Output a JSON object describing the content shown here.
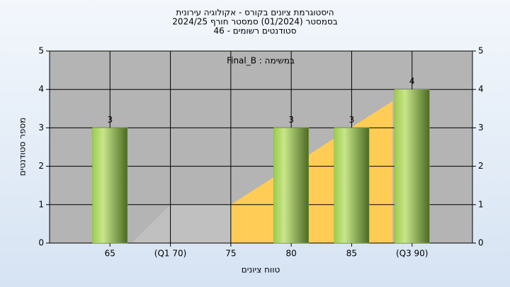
{
  "chart_data": {
    "type": "bar",
    "title": [
      "היסטוגרמת ציונים בקורס - אקולוגיה עירונית",
      "בסמסטר  (01/2024)  סמסטר חורף 2024/25",
      "סטודנטים רשומים - 46"
    ],
    "annotation": "במשימה : Final_B",
    "x_label": "טווח ציונים",
    "y_label": "מספר סטודנטים",
    "x": [
      65,
      70,
      75,
      80,
      85,
      90
    ],
    "values": [
      3,
      0,
      0,
      3,
      3,
      4
    ],
    "color": "#8db543",
    "areas": [
      {
        "color": "#c0c0c0",
        "x": [
          66.8,
          70,
          75,
          75
        ],
        "values": [
          0,
          1,
          1,
          0
        ]
      },
      {
        "color": "#ffcc55",
        "x": [
          75,
          75,
          88.4,
          88.4
        ],
        "values": [
          0,
          1,
          3.7,
          0
        ]
      }
    ],
    "xlim": [
      60,
      95
    ],
    "xticks": [
      65,
      {
        "value": 70,
        "label": "(Q1 70)"
      },
      75,
      80,
      85,
      {
        "value": 90,
        "label": "(Q3 90)"
      }
    ],
    "ylim": [
      0,
      5
    ],
    "yticks": [
      0,
      1,
      2,
      3,
      4,
      5
    ],
    "y2lim": [
      0,
      5
    ],
    "y2ticks": [
      0,
      1,
      2,
      3,
      4,
      5
    ],
    "grid": true
  }
}
